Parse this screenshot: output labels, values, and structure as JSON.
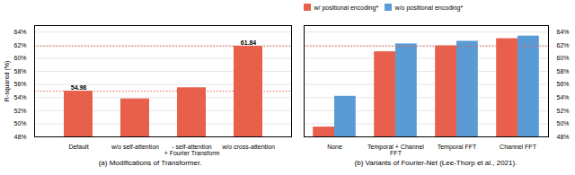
{
  "chart_data": [
    {
      "type": "bar",
      "title": "(a)  Modifications of Transformer.",
      "categories": [
        "Default",
        "w/o self-attention",
        "- self-attention\n+ Fourier Transform",
        "w/o cross-attention"
      ],
      "values": [
        54.98,
        53.8,
        55.5,
        61.84
      ],
      "color": "#E8604C",
      "ylabel": "R-squared (%)",
      "ylim": [
        48,
        65.0
      ],
      "yticks": [
        {
          "value": 48,
          "label": "48%"
        },
        {
          "value": 50,
          "label": "50%"
        },
        {
          "value": 52,
          "label": "52%"
        },
        {
          "value": 54,
          "label": "54%"
        },
        {
          "value": 56,
          "label": "56%"
        },
        {
          "value": 58,
          "label": "58%"
        },
        {
          "value": 60,
          "label": "60%"
        },
        {
          "value": 62,
          "label": "62%"
        },
        {
          "value": 64,
          "label": "64%"
        }
      ],
      "grid": true,
      "annotations": [
        {
          "category": "Default",
          "value": 54.98,
          "text": "54.98"
        },
        {
          "category": "w/o cross-attention",
          "value": 61.84,
          "text": "61.84"
        }
      ],
      "hlines": [
        {
          "value": 54.98,
          "color": "#E8604C",
          "line_style": "dotted"
        },
        {
          "value": 61.84,
          "color": "#E8604C",
          "line_style": "dotted"
        }
      ]
    },
    {
      "type": "bar",
      "title": "(b)  Variants of Fourier-Net (Lee-Thorp et al., 2021).",
      "categories": [
        "None",
        "Temporal + Channel\nFFT",
        "Temporal FFT",
        "Channel FFT"
      ],
      "series": [
        {
          "name": "w/ positional encoding*",
          "color": "#E8604C",
          "values": [
            49.5,
            61.0,
            61.9,
            63.0
          ],
          "axis": "y2"
        },
        {
          "name": "w/o positional encoding*",
          "color": "#5B9BD5",
          "values": [
            54.2,
            62.2,
            62.6,
            63.4
          ],
          "axis": "y2"
        }
      ],
      "y2lim": [
        48,
        65.0
      ],
      "y2ticks": [
        {
          "value": 48,
          "label": "48%"
        },
        {
          "value": 50,
          "label": "50%"
        },
        {
          "value": 52,
          "label": "52%"
        },
        {
          "value": 54,
          "label": "54%"
        },
        {
          "value": 56,
          "label": "56%"
        },
        {
          "value": 58,
          "label": "58%"
        },
        {
          "value": 60,
          "label": "60%"
        },
        {
          "value": 62,
          "label": "62%"
        },
        {
          "value": 64,
          "label": "64%"
        }
      ],
      "grid": true,
      "legend": "upper left",
      "hlines": [
        {
          "value": 61.84,
          "color": "#E8604C",
          "line_style": "dotted"
        }
      ]
    }
  ]
}
